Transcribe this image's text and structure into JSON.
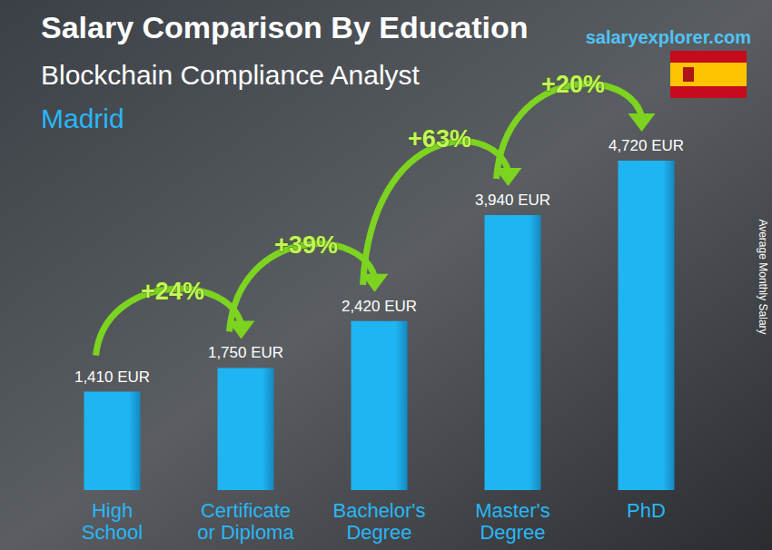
{
  "chart_data": {
    "type": "bar",
    "title": "Salary Comparison By Education",
    "subtitle": "Blockchain Compliance Analyst",
    "location": "Madrid",
    "source": "salaryexplorer.com",
    "y_label": "Average Monthly Salary",
    "categories": [
      "High School",
      "Certificate or Diploma",
      "Bachelor's Degree",
      "Master's Degree",
      "PhD"
    ],
    "values": [
      1410,
      1750,
      2420,
      3940,
      4720
    ],
    "value_labels": [
      "1,410 EUR",
      "1,750 EUR",
      "2,420 EUR",
      "3,940 EUR",
      "4,720 EUR"
    ],
    "color": "#1fb4f2",
    "ylim": [
      0,
      5200
    ],
    "grid": false,
    "data_labels": true,
    "tick_labels": "x",
    "annotations": [
      {
        "text": "+24%",
        "from": "High School",
        "to": "Certificate or Diploma"
      },
      {
        "text": "+39%",
        "from": "Certificate or Diploma",
        "to": "Bachelor's Degree"
      },
      {
        "text": "+63%",
        "from": "Bachelor's Degree",
        "to": "Master's Degree"
      },
      {
        "text": "+20%",
        "from": "Master's Degree",
        "to": "PhD"
      }
    ]
  }
}
